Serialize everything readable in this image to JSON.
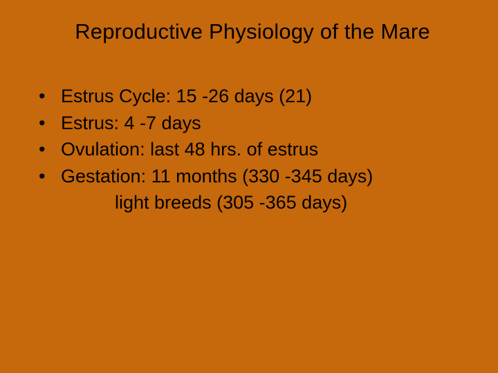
{
  "slide": {
    "background_color": "#c6680c",
    "text_color": "#000000",
    "font_family": "Arial",
    "title": "Reproductive Physiology of the Mare",
    "title_fontsize": 31,
    "body_fontsize": 27,
    "bullets": [
      {
        "marker": "•",
        "text": "Estrus Cycle: 15 -26 days (21)"
      },
      {
        "marker": "•",
        "text": "Estrus: 4 -7 days"
      },
      {
        "marker": "•",
        "text": "Ovulation: last 48 hrs. of estrus"
      },
      {
        "marker": "•",
        "text": "Gestation: 11 months (330 -345 days)"
      }
    ],
    "subline": "light breeds (305 -365 days)"
  }
}
